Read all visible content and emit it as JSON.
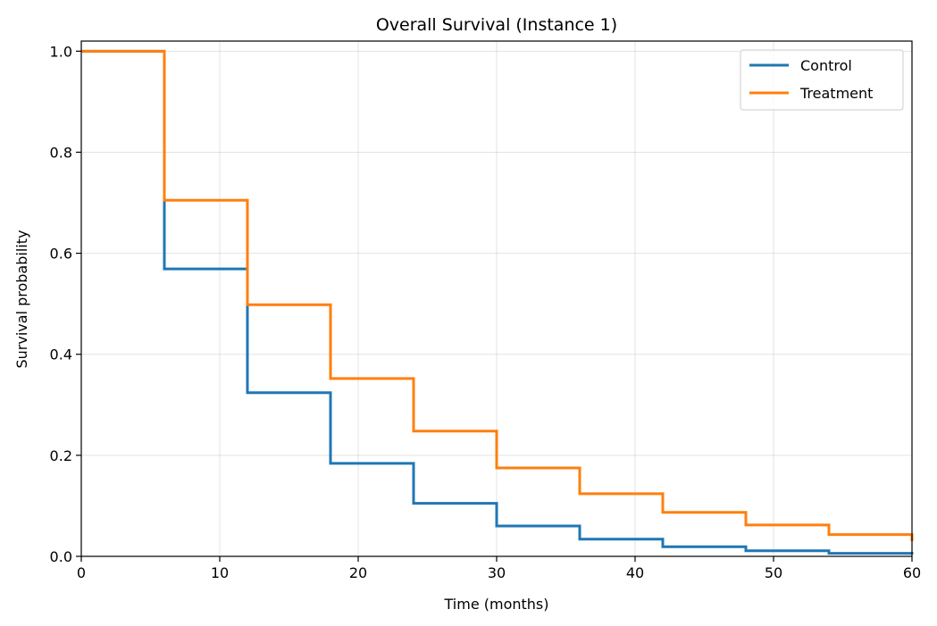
{
  "chart_data": {
    "type": "line",
    "step": "post",
    "title": "Overall Survival (Instance 1)",
    "xlabel": "Time (months)",
    "ylabel": "Survival probability",
    "xlim": [
      0,
      60
    ],
    "ylim": [
      0,
      1.02
    ],
    "xticks": [
      0,
      10,
      20,
      30,
      40,
      50,
      60
    ],
    "yticks": [
      0.0,
      0.2,
      0.4,
      0.6,
      0.8,
      1.0
    ],
    "xtick_labels": [
      "0",
      "10",
      "20",
      "30",
      "40",
      "50",
      "60"
    ],
    "ytick_labels": [
      "0.0",
      "0.2",
      "0.4",
      "0.6",
      "0.8",
      "1.0"
    ],
    "grid": true,
    "legend_position": "top-right",
    "series": [
      {
        "name": "Control",
        "color": "#1f77b4",
        "x": [
          0,
          6,
          12,
          18,
          24,
          30,
          36,
          42,
          48,
          54,
          60
        ],
        "y": [
          1.0,
          0.569,
          0.324,
          0.184,
          0.105,
          0.06,
          0.034,
          0.019,
          0.011,
          0.006,
          0.004
        ]
      },
      {
        "name": "Treatment",
        "color": "#ff7f0e",
        "x": [
          0,
          6,
          12,
          18,
          24,
          30,
          36,
          42,
          48,
          54,
          60
        ],
        "y": [
          1.0,
          0.705,
          0.498,
          0.352,
          0.248,
          0.175,
          0.124,
          0.087,
          0.062,
          0.043,
          0.03
        ]
      }
    ]
  }
}
